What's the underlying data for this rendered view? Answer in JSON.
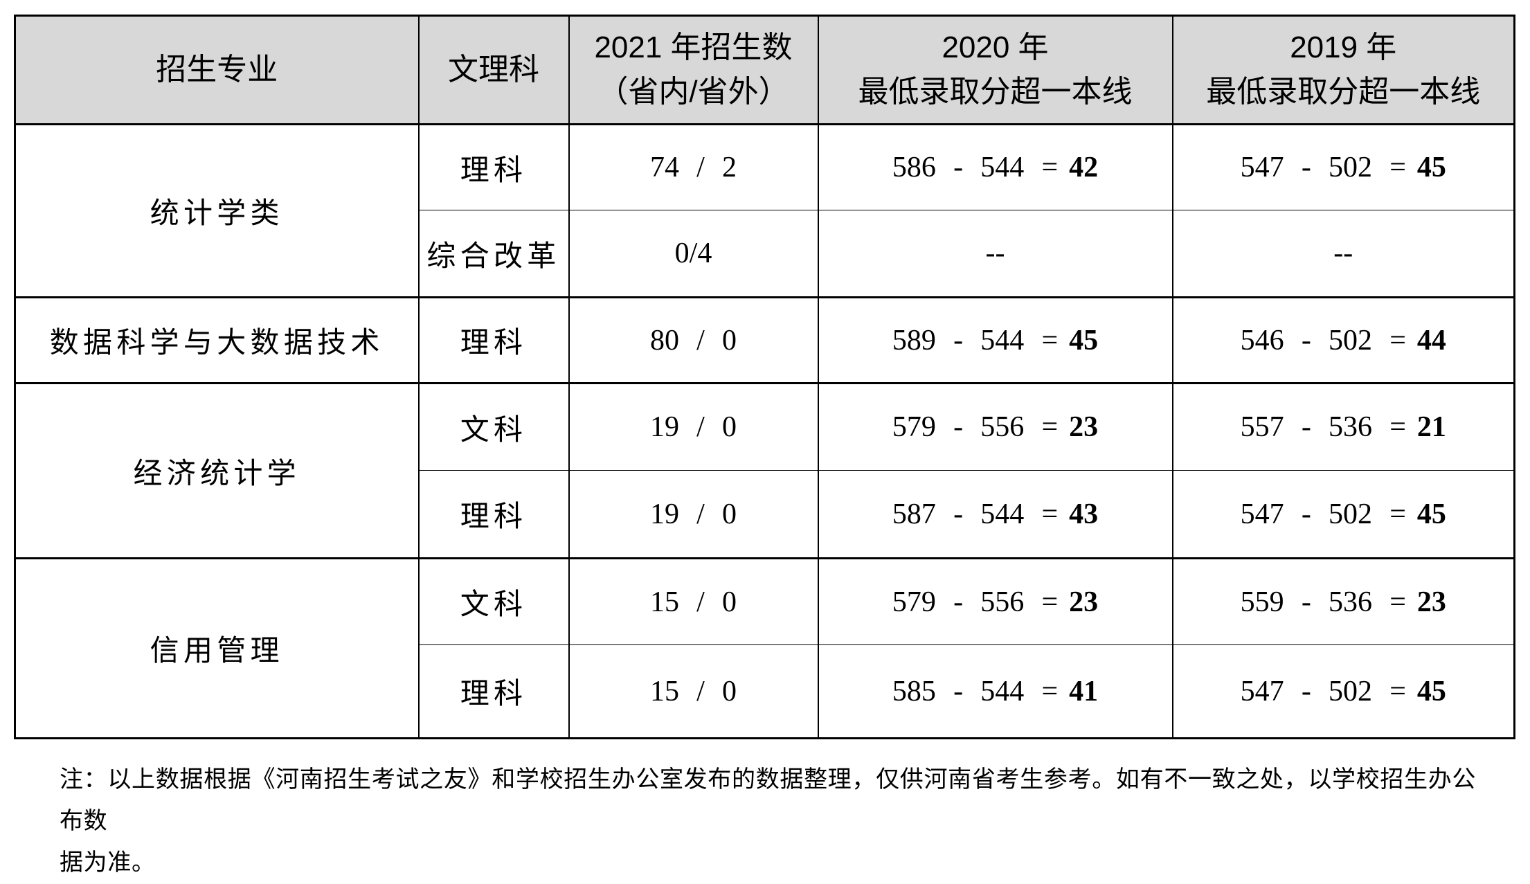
{
  "colors": {
    "header_bg": "#d8d8d8",
    "border": "#000000",
    "text": "#000000",
    "page_bg": "#ffffff"
  },
  "table": {
    "headers": {
      "major": "招生专业",
      "track": "文理科",
      "enroll_2021": [
        "2021 年招生数",
        "（省内/省外）"
      ],
      "score_2020": [
        "2020 年",
        "最低录取分超一本线"
      ],
      "score_2019": [
        "2019 年",
        "最低录取分超一本线"
      ]
    },
    "groups": [
      {
        "major": "统计学类",
        "rows": [
          {
            "track": "理科",
            "enroll": "74 / 2",
            "s2020": {
              "expr": "586 - 544 =",
              "result": "42"
            },
            "s2019": {
              "expr": "547 - 502 =",
              "result": "45"
            }
          },
          {
            "track": "综合改革",
            "enroll": "0/4",
            "s2020": {
              "expr": "--",
              "result": ""
            },
            "s2019": {
              "expr": "--",
              "result": ""
            }
          }
        ]
      },
      {
        "major": "数据科学与大数据技术",
        "rows": [
          {
            "track": "理科",
            "enroll": "80 / 0",
            "s2020": {
              "expr": "589 - 544 =",
              "result": "45"
            },
            "s2019": {
              "expr": "546 - 502 =",
              "result": "44"
            }
          }
        ]
      },
      {
        "major": "经济统计学",
        "rows": [
          {
            "track": "文科",
            "enroll": "19 / 0",
            "s2020": {
              "expr": "579 - 556 =",
              "result": "23"
            },
            "s2019": {
              "expr": "557 - 536 =",
              "result": "21"
            }
          },
          {
            "track": "理科",
            "enroll": "19 / 0",
            "s2020": {
              "expr": "587 - 544 =",
              "result": "43"
            },
            "s2019": {
              "expr": "547 - 502 =",
              "result": "45"
            }
          }
        ]
      },
      {
        "major": "信用管理",
        "rows": [
          {
            "track": "文科",
            "enroll": "15 / 0",
            "s2020": {
              "expr": "579 - 556 =",
              "result": "23"
            },
            "s2019": {
              "expr": "559 - 536 =",
              "result": "23"
            }
          },
          {
            "track": "理科",
            "enroll": "15 / 0",
            "s2020": {
              "expr": "585 - 544 =",
              "result": "41"
            },
            "s2019": {
              "expr": "547 - 502 =",
              "result": "45"
            }
          }
        ]
      }
    ]
  },
  "note": {
    "lines": [
      "注：以上数据根据《河南招生考试之友》和学校招生办公室发布的数据整理，仅供河南省考生参考。如有不一致之处，以学校招生办公布数",
      "据为准。"
    ]
  }
}
